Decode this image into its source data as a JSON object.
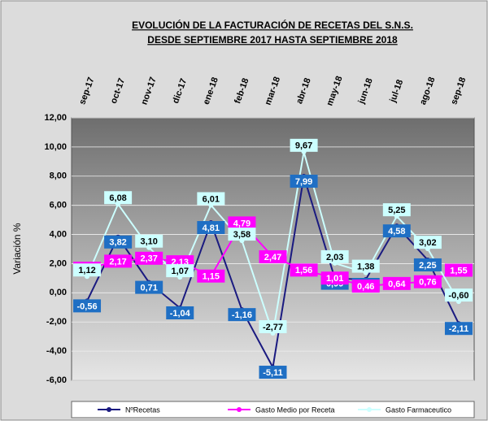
{
  "chart_data": {
    "type": "line",
    "title": "EVOLUCIÓN DE LA FACTURACIÓN DE RECETAS DEL S.N.S.",
    "subtitle": "DESDE SEPTIEMBRE 2017 HASTA SEPTIEMBRE 2018",
    "y_label": "Variación %",
    "categories": [
      "sep-17",
      "oct-17",
      "nov-17",
      "dic-17",
      "ene-18",
      "feb-18",
      "mar-18",
      "abr-18",
      "may-18",
      "jun-18",
      "jul-18",
      "ago-18",
      "sep-18"
    ],
    "ylim": [
      -6,
      12
    ],
    "yticks": [
      {
        "value": 12,
        "label": "12,00"
      },
      {
        "value": 10,
        "label": "10,00"
      },
      {
        "value": 8,
        "label": "8,00"
      },
      {
        "value": 6,
        "label": "6,00"
      },
      {
        "value": 4,
        "label": "4,00"
      },
      {
        "value": 2,
        "label": "2,00"
      },
      {
        "value": 0,
        "label": "0,00"
      },
      {
        "value": -2,
        "label": "-2,00"
      },
      {
        "value": -4,
        "label": "-4,00"
      },
      {
        "value": -6,
        "label": "-6,00"
      }
    ],
    "grid": true,
    "legend": "bottom",
    "series": [
      {
        "name": "NºRecetas",
        "color": "#1a1a80",
        "label_color": "#1f6fc4",
        "label_text_color": "#ffffff",
        "values": [
          -0.56,
          3.82,
          0.71,
          -1.04,
          4.81,
          -1.16,
          -5.11,
          7.99,
          0.99,
          0.91,
          4.58,
          2.25,
          -2.11
        ],
        "value_labels": [
          "-0,56",
          "3,82",
          "0,71",
          "-1,04",
          "4,81",
          "-1,16",
          "-5,11",
          "7,99",
          "0,99",
          "0,91",
          "4,58",
          "2,25",
          "-2,11"
        ]
      },
      {
        "name": "Gasto Medio por Receta",
        "color": "#ff00ff",
        "label_color": "#ff00ff",
        "label_text_color": "#ffffff",
        "values": [
          1.69,
          2.17,
          2.37,
          2.13,
          1.15,
          4.79,
          2.47,
          1.56,
          1.01,
          0.46,
          0.64,
          0.76,
          1.55
        ],
        "value_labels": [
          "1,69",
          "2,17",
          "2,37",
          "2,13",
          "1,15",
          "4,79",
          "2,47",
          "1,56",
          "1,01",
          "0,46",
          "0,64",
          "0,76",
          "1,55"
        ]
      },
      {
        "name": "Gasto Farmaceutico",
        "color": "#ccffff",
        "label_color": "#ccffff",
        "label_text_color": "#000000",
        "values": [
          1.12,
          6.08,
          3.1,
          1.07,
          6.01,
          3.58,
          -2.77,
          9.67,
          2.03,
          1.38,
          5.25,
          3.02,
          -0.6
        ],
        "value_labels": [
          "1,12",
          "6,08",
          "3,10",
          "1,07",
          "6,01",
          "3,58",
          "-2,77",
          "9,67",
          "2,03",
          "1,38",
          "5,25",
          "3,02",
          "-0,60"
        ]
      }
    ]
  }
}
